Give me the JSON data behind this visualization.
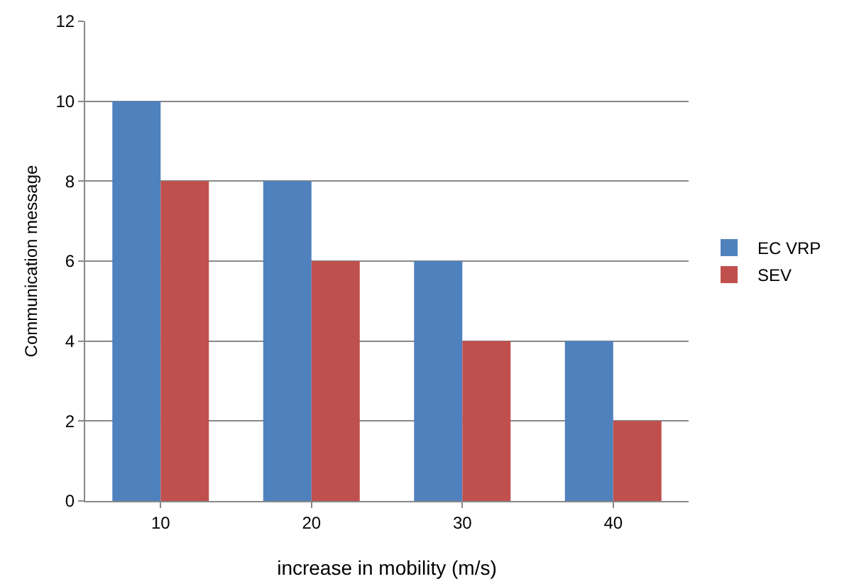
{
  "chart_data": {
    "type": "bar",
    "xlabel": "increase in mobility (m/s)",
    "ylabel": "Communication message",
    "categories": [
      "10",
      "20",
      "30",
      "40"
    ],
    "series": [
      {
        "name": "EC VRP",
        "color": "#4f81bd",
        "values": [
          10,
          8,
          6,
          4
        ]
      },
      {
        "name": "SEV",
        "color": "#c0504d",
        "values": [
          8,
          6,
          4,
          2
        ]
      }
    ],
    "ylim": [
      0,
      12
    ],
    "yticks": [
      0,
      2,
      4,
      6,
      8,
      10,
      12
    ],
    "grid": "y",
    "legend": "right"
  }
}
